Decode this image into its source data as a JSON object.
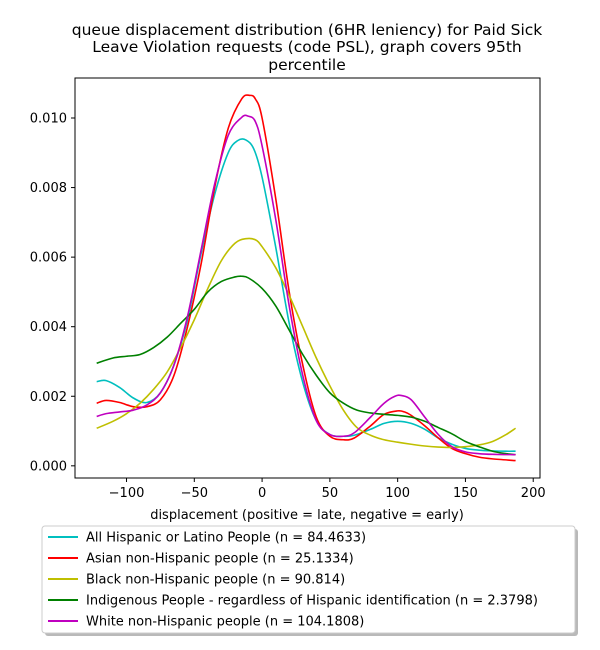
{
  "chart_data": {
    "type": "line",
    "title_lines": [
      "queue displacement distribution (6HR leniency) for Paid Sick",
      "Leave Violation  requests (code PSL), graph covers 95th",
      "percentile"
    ],
    "xlabel": "displacement (positive = late, negative = early)",
    "ylabel": "",
    "xlim": [
      -138,
      205
    ],
    "ylim": [
      -0.00035,
      0.01115
    ],
    "x_ticks": [
      -100,
      -50,
      0,
      50,
      100,
      150,
      200
    ],
    "x_tick_labels": [
      "−100",
      "−50",
      "0",
      "50",
      "100",
      "150",
      "200"
    ],
    "y_ticks": [
      0.0,
      0.002,
      0.004,
      0.006,
      0.008,
      0.01
    ],
    "y_tick_labels": [
      "0.000",
      "0.002",
      "0.004",
      "0.006",
      "0.008",
      "0.010"
    ],
    "grid": false,
    "legend_position": "below-plot",
    "series": [
      {
        "name": "All Hispanic or Latino People (n = 84.4633)",
        "color": "#00bfbf",
        "x": [
          -122,
          -115,
          -105,
          -95,
          -85,
          -75,
          -65,
          -55,
          -45,
          -35,
          -25,
          -18,
          -12,
          -6,
          0,
          10,
          20,
          30,
          40,
          50,
          60,
          68,
          80,
          90,
          100,
          110,
          120,
          130,
          140,
          150,
          160,
          170,
          180,
          187
        ],
        "y": [
          0.00242,
          0.00245,
          0.00225,
          0.00195,
          0.00182,
          0.0021,
          0.0029,
          0.0042,
          0.0061,
          0.0078,
          0.009,
          0.00935,
          0.00937,
          0.0091,
          0.0083,
          0.0063,
          0.0041,
          0.0024,
          0.0013,
          0.0009,
          0.00085,
          0.00088,
          0.00105,
          0.00122,
          0.00128,
          0.00122,
          0.00105,
          0.0008,
          0.00062,
          0.0005,
          0.00045,
          0.00043,
          0.00042,
          0.00042
        ]
      },
      {
        "name": "Asian non-Hispanic people (n = 25.1334)",
        "color": "#ff0000",
        "x": [
          -122,
          -115,
          -105,
          -95,
          -85,
          -75,
          -65,
          -55,
          -45,
          -35,
          -25,
          -15,
          -9,
          -5,
          0,
          10,
          20,
          30,
          40,
          50,
          60,
          68,
          80,
          90,
          100,
          105,
          110,
          120,
          130,
          140,
          150,
          160,
          170,
          187
        ],
        "y": [
          0.0018,
          0.00188,
          0.00182,
          0.0017,
          0.0017,
          0.0019,
          0.0026,
          0.004,
          0.0058,
          0.008,
          0.0097,
          0.01055,
          0.01065,
          0.01055,
          0.01,
          0.0077,
          0.005,
          0.0029,
          0.0014,
          0.00085,
          0.00075,
          0.0008,
          0.00115,
          0.00148,
          0.00158,
          0.00155,
          0.00145,
          0.00115,
          0.0008,
          0.0005,
          0.00035,
          0.00025,
          0.0002,
          0.00015
        ]
      },
      {
        "name": "Black non-Hispanic people (n = 90.814)",
        "color": "#bfbf00",
        "x": [
          -122,
          -110,
          -100,
          -90,
          -80,
          -70,
          -60,
          -50,
          -40,
          -30,
          -20,
          -12,
          -5,
          0,
          10,
          20,
          30,
          40,
          50,
          60,
          70,
          80,
          90,
          100,
          110,
          120,
          130,
          140,
          150,
          160,
          170,
          180,
          187
        ],
        "y": [
          0.00108,
          0.00128,
          0.0015,
          0.0018,
          0.0022,
          0.0027,
          0.0034,
          0.0042,
          0.0051,
          0.0059,
          0.0064,
          0.00653,
          0.0065,
          0.0063,
          0.0057,
          0.0049,
          0.004,
          0.0031,
          0.0023,
          0.0016,
          0.0011,
          0.00088,
          0.00075,
          0.00068,
          0.00062,
          0.00057,
          0.00054,
          0.00053,
          0.00055,
          0.0006,
          0.0007,
          0.0009,
          0.00108
        ]
      },
      {
        "name": "Indigenous People - regardless of Hispanic identification (n = 2.3798)",
        "color": "#008000",
        "x": [
          -122,
          -110,
          -100,
          -90,
          -80,
          -70,
          -60,
          -50,
          -40,
          -30,
          -20,
          -15,
          -10,
          0,
          10,
          20,
          30,
          40,
          50,
          60,
          70,
          80,
          90,
          100,
          110,
          120,
          130,
          140,
          150,
          160,
          170,
          180,
          187
        ],
        "y": [
          0.00295,
          0.0031,
          0.00315,
          0.0032,
          0.0034,
          0.0037,
          0.0041,
          0.0045,
          0.005,
          0.0053,
          0.00543,
          0.00545,
          0.0054,
          0.0051,
          0.0046,
          0.0039,
          0.0032,
          0.0026,
          0.0021,
          0.0018,
          0.0016,
          0.00152,
          0.00148,
          0.00145,
          0.0014,
          0.00128,
          0.0011,
          0.00092,
          0.0007,
          0.00055,
          0.00042,
          0.00035,
          0.00032
        ]
      },
      {
        "name": "White non-Hispanic people (n = 104.1808)",
        "color": "#bf00bf",
        "x": [
          -122,
          -115,
          -105,
          -95,
          -85,
          -75,
          -65,
          -55,
          -45,
          -35,
          -25,
          -15,
          -10,
          -5,
          0,
          10,
          20,
          30,
          40,
          50,
          60,
          68,
          80,
          90,
          98,
          103,
          110,
          120,
          130,
          140,
          150,
          160,
          170,
          187
        ],
        "y": [
          0.00142,
          0.0015,
          0.00155,
          0.0016,
          0.00175,
          0.0021,
          0.0029,
          0.0043,
          0.0062,
          0.0081,
          0.0095,
          0.01002,
          0.01005,
          0.0099,
          0.0092,
          0.0071,
          0.0046,
          0.0026,
          0.0013,
          0.0009,
          0.00085,
          0.00095,
          0.0014,
          0.0018,
          0.002,
          0.00202,
          0.0019,
          0.0014,
          0.0009,
          0.00055,
          0.0004,
          0.00035,
          0.00033,
          0.00032
        ]
      }
    ]
  }
}
